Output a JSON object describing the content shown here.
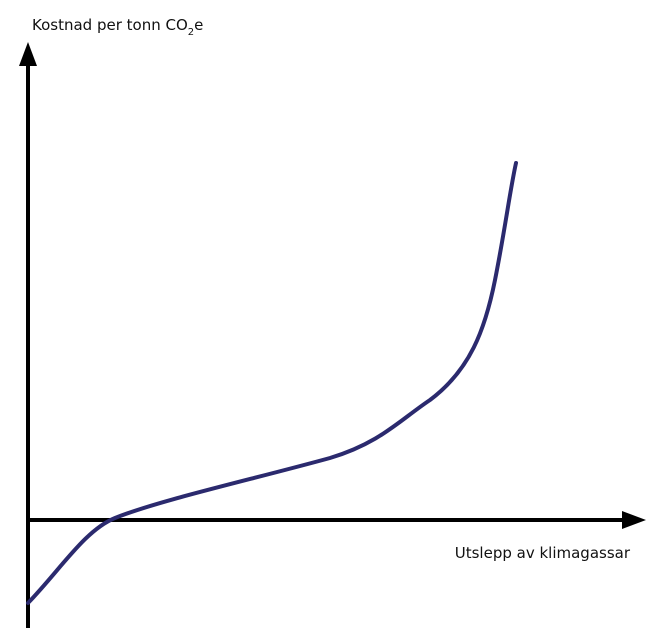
{
  "y_axis_label": {
    "text": "Kostnad per tonn CO",
    "subscript": "2",
    "suffix": "e"
  },
  "x_axis_label": "Utslepp av klimagassar"
}
